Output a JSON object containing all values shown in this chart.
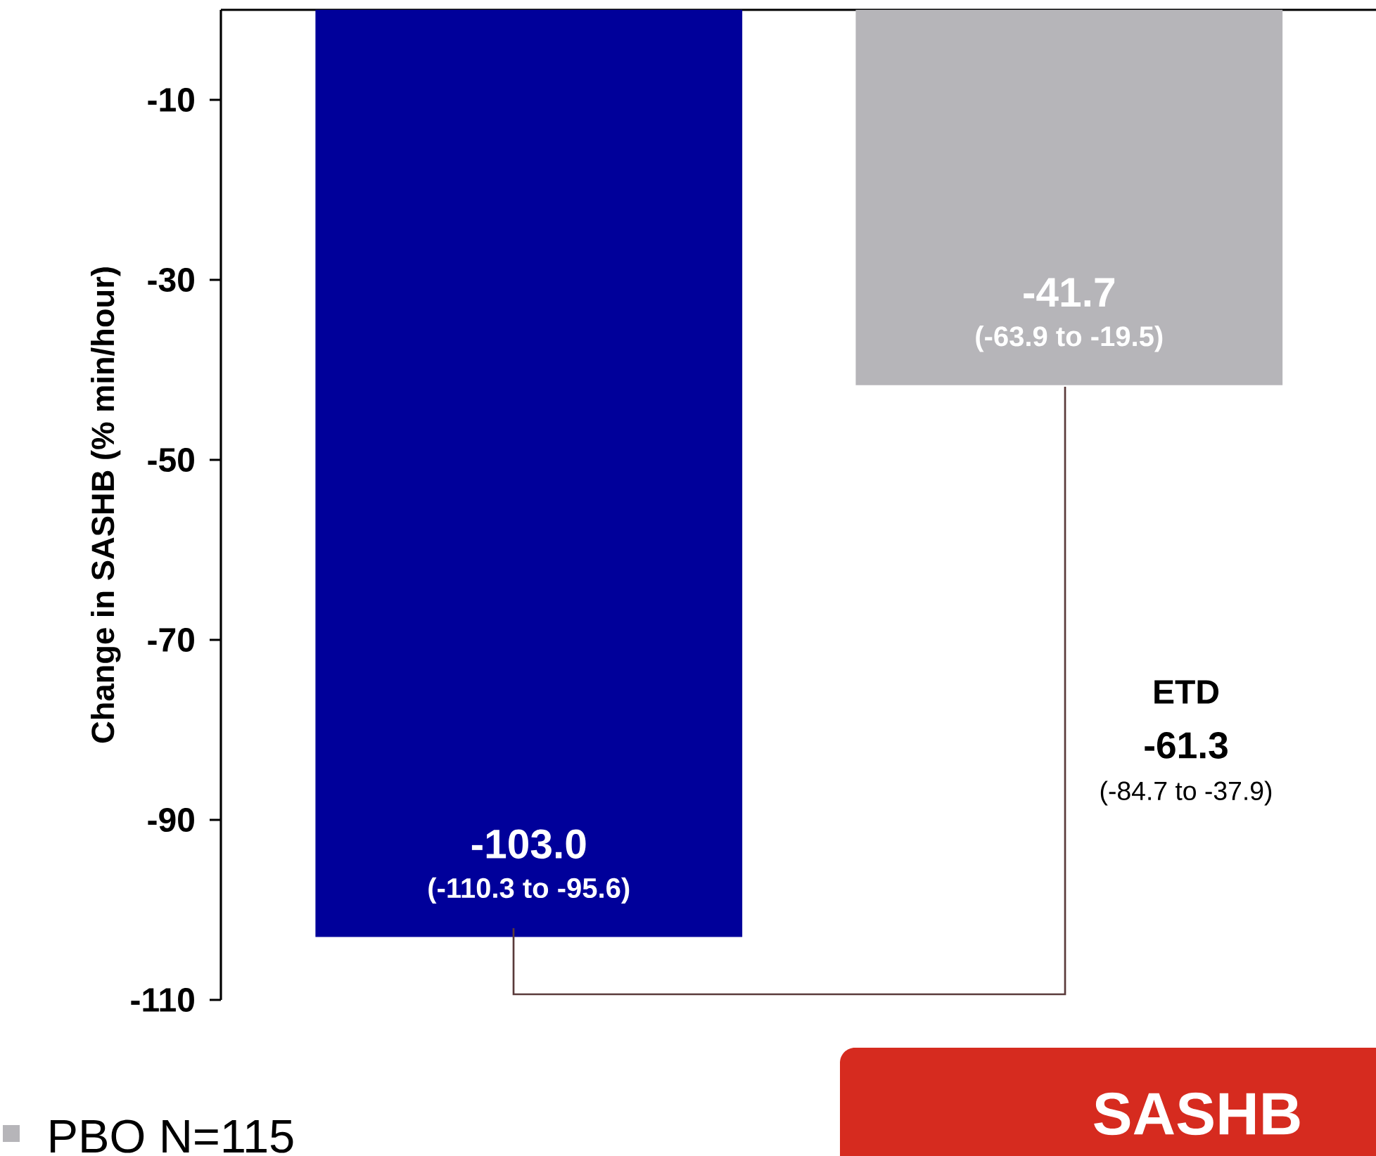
{
  "chart_data": {
    "type": "bar",
    "ylabel": "Change in SASHB (% min/hour)",
    "categories": [
      null,
      null
    ],
    "series": [
      {
        "color": "#00009a",
        "values": [
          -103.0,
          null
        ],
        "value_labels": [
          "-103.0",
          null
        ]
      },
      {
        "name": "PBO  N=115",
        "color": "#b6b5b9",
        "values": [
          null,
          -41.7
        ],
        "value_labels": [
          null,
          "-41.7"
        ]
      }
    ],
    "ylim": [
      -110,
      0
    ],
    "yticks": [
      -10,
      -30,
      -50,
      -70,
      -90,
      -110
    ],
    "legend": "bottom left",
    "annotations": [
      "(-110.3 to -95.6)",
      "(-63.9 to -19.5)",
      "ETD",
      "-61.3",
      "(-84.7 to -37.9)",
      "SASHB"
    ]
  }
}
